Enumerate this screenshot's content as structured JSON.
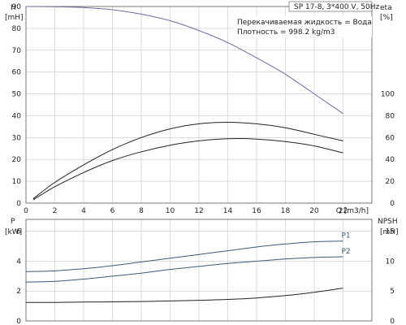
{
  "chart_data": [
    {
      "type": "line",
      "title": "SP 17-8, 3*400 V, 50Hz",
      "annotations": [
        "Перекачиваемая жидкость = Вода",
        "Плотность = 998.2 kg/m3"
      ],
      "xlabel": "Q [m3/h]",
      "xlim": [
        0,
        24
      ],
      "x_ticks": [
        "0",
        "2",
        "4",
        "6",
        "8",
        "10",
        "12",
        "14",
        "16",
        "18",
        "20",
        "22"
      ],
      "left_axis": {
        "label_top": "H",
        "label_unit": "[mH]",
        "ylim": [
          0,
          90
        ],
        "ticks": [
          "0",
          "10",
          "20",
          "30",
          "40",
          "50",
          "60",
          "70",
          "80",
          "90"
        ]
      },
      "right_axis": {
        "label_top": "eta",
        "label_unit": "[%]",
        "ylim": [
          0,
          180
        ],
        "ticks": [
          "0",
          "20",
          "40",
          "60",
          "80",
          "100"
        ]
      },
      "grid": true,
      "series": [
        {
          "axis": "left",
          "color": "#6a6d9a",
          "x": [
            0,
            2,
            4,
            6,
            8,
            10,
            12,
            14,
            16,
            18,
            20,
            22
          ],
          "y": [
            90,
            89.9,
            89.5,
            88.5,
            86.5,
            83.5,
            79,
            73.5,
            66.5,
            59,
            50,
            41
          ]
        },
        {
          "axis": "left",
          "color": "#222222",
          "x": [
            0.5,
            2,
            4,
            6,
            8,
            10,
            12,
            14,
            16,
            18,
            20,
            22
          ],
          "y": [
            2,
            9.5,
            17.5,
            24.5,
            30,
            34,
            36.3,
            37,
            36.3,
            34.5,
            31.5,
            28.5
          ]
        },
        {
          "axis": "left",
          "color": "#222222",
          "x": [
            0.5,
            2,
            4,
            6,
            8,
            10,
            12,
            14,
            16,
            18,
            20,
            22
          ],
          "y": [
            1.5,
            7.5,
            14,
            19.5,
            23.5,
            26.5,
            28.5,
            29.5,
            29.3,
            28.2,
            26.2,
            23
          ]
        }
      ]
    },
    {
      "type": "line",
      "xlim": [
        0,
        24
      ],
      "left_axis": {
        "label_top": "P",
        "label_unit": "[kW]",
        "ylim": [
          0,
          6.8
        ],
        "ticks": [
          "0",
          "2",
          "4",
          "6"
        ]
      },
      "right_axis": {
        "label_top": "NPSH",
        "label_unit": "[mH]",
        "ylim": [
          0,
          17
        ],
        "ticks": [
          "0",
          "5",
          "10",
          "15"
        ]
      },
      "grid": true,
      "series": [
        {
          "name": "P1",
          "axis": "left",
          "color": "#3d5a7a",
          "x": [
            0,
            2,
            4,
            6,
            8,
            10,
            12,
            14,
            16,
            18,
            20,
            22
          ],
          "y": [
            3.3,
            3.35,
            3.5,
            3.7,
            3.95,
            4.2,
            4.45,
            4.7,
            4.95,
            5.15,
            5.3,
            5.35
          ]
        },
        {
          "name": "P2",
          "axis": "left",
          "color": "#3d5a7a",
          "x": [
            0,
            2,
            4,
            6,
            8,
            10,
            12,
            14,
            16,
            18,
            20,
            22
          ],
          "y": [
            2.6,
            2.65,
            2.8,
            3.0,
            3.2,
            3.45,
            3.65,
            3.85,
            4.0,
            4.15,
            4.25,
            4.3
          ]
        },
        {
          "axis": "right",
          "color": "#222222",
          "x": [
            0,
            2,
            4,
            6,
            8,
            10,
            12,
            14,
            16,
            18,
            20,
            22
          ],
          "y": [
            3.1,
            3.1,
            3.15,
            3.2,
            3.25,
            3.35,
            3.45,
            3.6,
            3.85,
            4.25,
            4.8,
            5.5
          ]
        }
      ]
    }
  ]
}
